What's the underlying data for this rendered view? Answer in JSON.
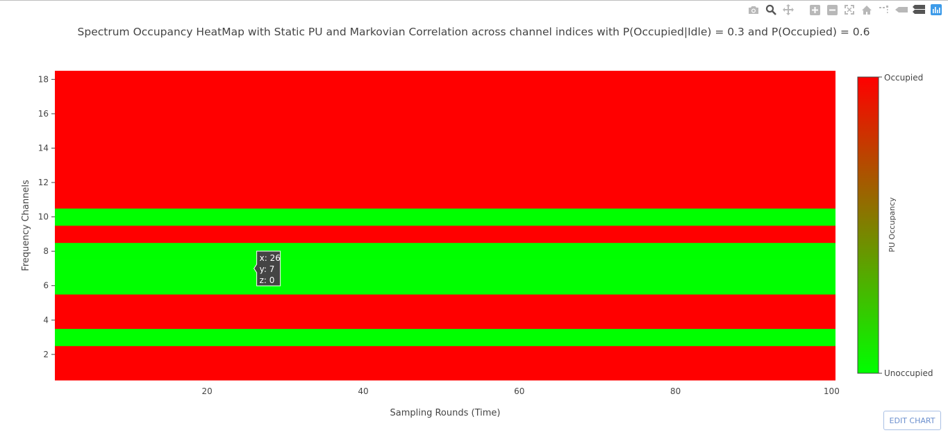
{
  "modebar": {
    "icons": [
      "camera-icon",
      "zoom-icon",
      "pan-icon",
      "zoom-in-icon",
      "zoom-out-icon",
      "autoscale-icon",
      "home-icon",
      "spike-lines-icon",
      "hover-closest-icon",
      "hover-compare-icon",
      "plotly-logo-icon"
    ]
  },
  "edit_chart": {
    "label": "EDIT CHART"
  },
  "colors": {
    "occupied": "#ff0000",
    "unoccupied": "#00ff00",
    "text": "#444444"
  },
  "chart_data": {
    "type": "heatmap",
    "title": "Spectrum Occupancy HeatMap with Static PU and Markovian Correlation across channel indices with P(Occupied|Idle) = 0.3 and P(Occupied) = 0.6",
    "xlabel": "Sampling Rounds (Time)",
    "ylabel": "Frequency Channels",
    "x_range": [
      1,
      100
    ],
    "y_range": [
      1,
      18
    ],
    "xlim": [
      0.5,
      100.5
    ],
    "ylim": [
      0.5,
      18.5
    ],
    "x_ticks": [
      20,
      40,
      60,
      80,
      100
    ],
    "y_ticks": [
      2,
      4,
      6,
      8,
      10,
      12,
      14,
      16,
      18
    ],
    "rows": [
      {
        "channel": 1,
        "z": 1
      },
      {
        "channel": 2,
        "z": 1
      },
      {
        "channel": 3,
        "z": 0
      },
      {
        "channel": 4,
        "z": 1
      },
      {
        "channel": 5,
        "z": 1
      },
      {
        "channel": 6,
        "z": 0
      },
      {
        "channel": 7,
        "z": 0
      },
      {
        "channel": 8,
        "z": 0
      },
      {
        "channel": 9,
        "z": 1
      },
      {
        "channel": 10,
        "z": 0
      },
      {
        "channel": 11,
        "z": 1
      },
      {
        "channel": 12,
        "z": 1
      },
      {
        "channel": 13,
        "z": 1
      },
      {
        "channel": 14,
        "z": 1
      },
      {
        "channel": 15,
        "z": 1
      },
      {
        "channel": 16,
        "z": 1
      },
      {
        "channel": 17,
        "z": 1
      },
      {
        "channel": 18,
        "z": 1
      }
    ],
    "colorbar": {
      "title": "PU Occupancy",
      "top_label": "Occupied",
      "bottom_label": "Unoccupied"
    },
    "hover": {
      "x": 26,
      "y": 7,
      "z": 0
    }
  }
}
